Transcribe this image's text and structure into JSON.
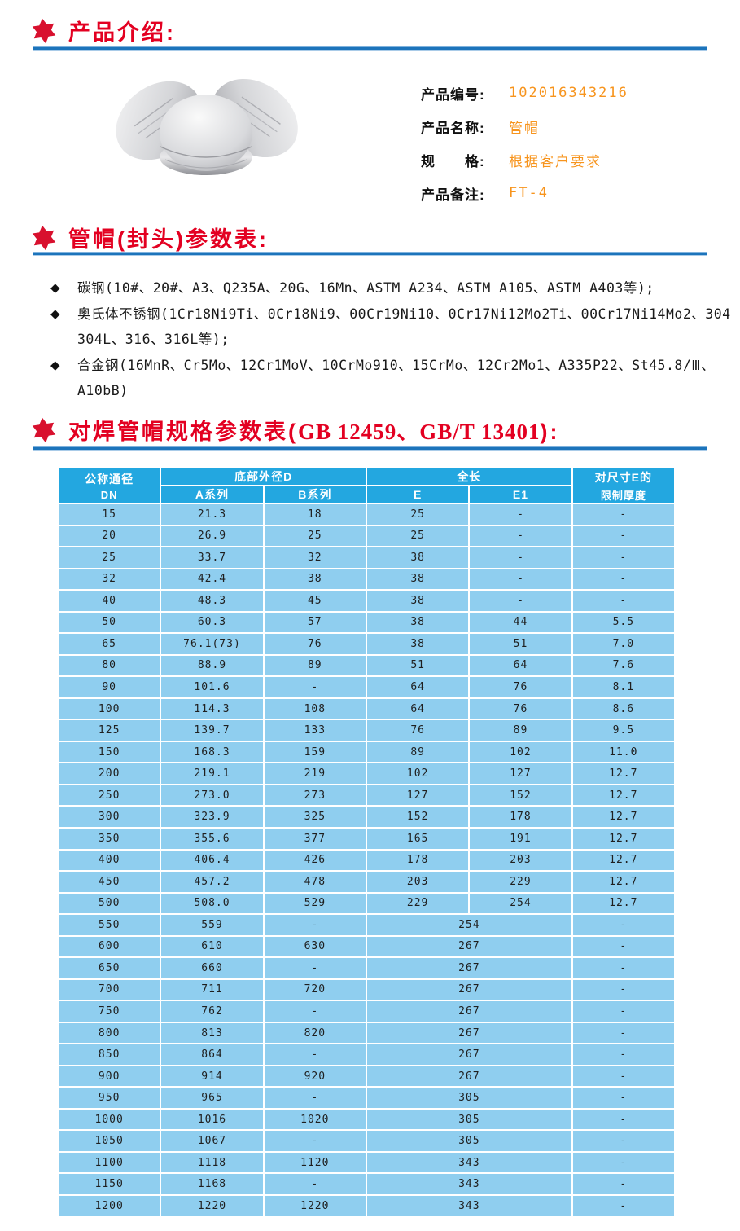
{
  "colors": {
    "heading_red": "#e30021",
    "divider_blue": "#1c74bb",
    "value_orange": "#f7941d",
    "table_header_blue": "#23a7e0",
    "table_cell_blue": "#8fceef"
  },
  "icons": {
    "star": "hexagram-star",
    "diamond": "◆"
  },
  "intro": {
    "title": "产品介绍:"
  },
  "product": {
    "info": [
      {
        "label": "产品编号:",
        "value": "102016343216"
      },
      {
        "label": "产品名称:",
        "value": "管帽"
      },
      {
        "label": "规　　格:",
        "value": "根据客户要求"
      },
      {
        "label": "产品备注:",
        "value": "FT-4"
      }
    ]
  },
  "materials": {
    "title": "管帽(封头)参数表:",
    "lines": [
      {
        "marker": true,
        "text": "碳钢(10#、20#、A3、Q235A、20G、16Mn、ASTM A234、ASTM A105、ASTM A403等);"
      },
      {
        "marker": true,
        "text": "奥氏体不锈钢(1Cr18Ni9Ti、0Cr18Ni9、00Cr19Ni10、0Cr17Ni12Mo2Ti、00Cr17Ni14Mo2、304"
      },
      {
        "marker": false,
        "text": "304L、316、316L等);"
      },
      {
        "marker": true,
        "text": "合金钢(16MnR、Cr5Mo、12Cr1MoV、10CrMo910、15CrMo、12Cr2Mo1、A335P22、St45.8/Ⅲ、"
      },
      {
        "marker": false,
        "text": "A10bB)"
      }
    ]
  },
  "spec": {
    "title_prefix": "对焊管帽规格参数表(",
    "title_std": "GB 12459、GB/T 13401",
    "title_suffix": "):"
  },
  "table": {
    "header": {
      "dn_top": "公称通径",
      "dn_sub": "DN",
      "group_d": "底部外径D",
      "group_len": "全长",
      "col_a": "A系列",
      "col_b": "B系列",
      "col_e": "E",
      "col_e1": "E1",
      "limit_top": "对尺寸E的",
      "limit_bottom": "限制厚度"
    },
    "rows": [
      {
        "dn": "15",
        "a": "21.3",
        "b": "18",
        "e": "25",
        "e1": "-",
        "t": "-"
      },
      {
        "dn": "20",
        "a": "26.9",
        "b": "25",
        "e": "25",
        "e1": "-",
        "t": "-"
      },
      {
        "dn": "25",
        "a": "33.7",
        "b": "32",
        "e": "38",
        "e1": "-",
        "t": "-"
      },
      {
        "dn": "32",
        "a": "42.4",
        "b": "38",
        "e": "38",
        "e1": "-",
        "t": "-"
      },
      {
        "dn": "40",
        "a": "48.3",
        "b": "45",
        "e": "38",
        "e1": "-",
        "t": "-"
      },
      {
        "dn": "50",
        "a": "60.3",
        "b": "57",
        "e": "38",
        "e1": "44",
        "t": "5.5"
      },
      {
        "dn": "65",
        "a": "76.1(73)",
        "b": "76",
        "e": "38",
        "e1": "51",
        "t": "7.0"
      },
      {
        "dn": "80",
        "a": "88.9",
        "b": "89",
        "e": "51",
        "e1": "64",
        "t": "7.6"
      },
      {
        "dn": "90",
        "a": "101.6",
        "b": "-",
        "e": "64",
        "e1": "76",
        "t": "8.1"
      },
      {
        "dn": "100",
        "a": "114.3",
        "b": "108",
        "e": "64",
        "e1": "76",
        "t": "8.6"
      },
      {
        "dn": "125",
        "a": "139.7",
        "b": "133",
        "e": "76",
        "e1": "89",
        "t": "9.5"
      },
      {
        "dn": "150",
        "a": "168.3",
        "b": "159",
        "e": "89",
        "e1": "102",
        "t": "11.0"
      },
      {
        "dn": "200",
        "a": "219.1",
        "b": "219",
        "e": "102",
        "e1": "127",
        "t": "12.7"
      },
      {
        "dn": "250",
        "a": "273.0",
        "b": "273",
        "e": "127",
        "e1": "152",
        "t": "12.7"
      },
      {
        "dn": "300",
        "a": "323.9",
        "b": "325",
        "e": "152",
        "e1": "178",
        "t": "12.7"
      },
      {
        "dn": "350",
        "a": "355.6",
        "b": "377",
        "e": "165",
        "e1": "191",
        "t": "12.7"
      },
      {
        "dn": "400",
        "a": "406.4",
        "b": "426",
        "e": "178",
        "e1": "203",
        "t": "12.7"
      },
      {
        "dn": "450",
        "a": "457.2",
        "b": "478",
        "e": "203",
        "e1": "229",
        "t": "12.7"
      },
      {
        "dn": "500",
        "a": "508.0",
        "b": "529",
        "e": "229",
        "e1": "254",
        "t": "12.7"
      },
      {
        "dn": "550",
        "a": "559",
        "b": "-",
        "e": "254",
        "e1": null,
        "t": "-"
      },
      {
        "dn": "600",
        "a": "610",
        "b": "630",
        "e": "267",
        "e1": null,
        "t": "-"
      },
      {
        "dn": "650",
        "a": "660",
        "b": "-",
        "e": "267",
        "e1": null,
        "t": "-"
      },
      {
        "dn": "700",
        "a": "711",
        "b": "720",
        "e": "267",
        "e1": null,
        "t": "-"
      },
      {
        "dn": "750",
        "a": "762",
        "b": "-",
        "e": "267",
        "e1": null,
        "t": "-"
      },
      {
        "dn": "800",
        "a": "813",
        "b": "820",
        "e": "267",
        "e1": null,
        "t": "-"
      },
      {
        "dn": "850",
        "a": "864",
        "b": "-",
        "e": "267",
        "e1": null,
        "t": "-"
      },
      {
        "dn": "900",
        "a": "914",
        "b": "920",
        "e": "267",
        "e1": null,
        "t": "-"
      },
      {
        "dn": "950",
        "a": "965",
        "b": "-",
        "e": "305",
        "e1": null,
        "t": "-"
      },
      {
        "dn": "1000",
        "a": "1016",
        "b": "1020",
        "e": "305",
        "e1": null,
        "t": "-"
      },
      {
        "dn": "1050",
        "a": "1067",
        "b": "-",
        "e": "305",
        "e1": null,
        "t": "-"
      },
      {
        "dn": "1100",
        "a": "1118",
        "b": "1120",
        "e": "343",
        "e1": null,
        "t": "-"
      },
      {
        "dn": "1150",
        "a": "1168",
        "b": "-",
        "e": "343",
        "e1": null,
        "t": "-"
      },
      {
        "dn": "1200",
        "a": "1220",
        "b": "1220",
        "e": "343",
        "e1": null,
        "t": "-"
      }
    ]
  }
}
